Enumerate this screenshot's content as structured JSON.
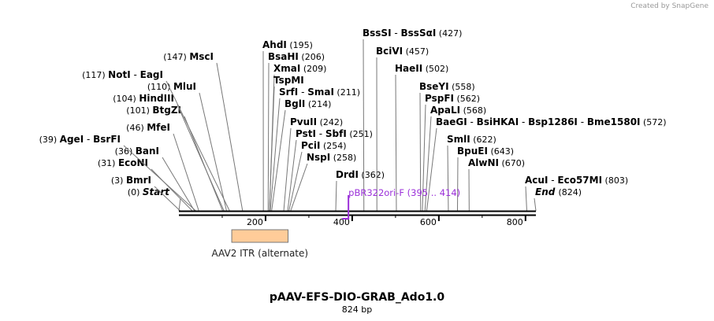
{
  "map": {
    "title": "pAAV-EFS-DIO-GRAB_Ado1.0",
    "length": 824,
    "length_label": "824 bp",
    "credit": "Created by SnapGene",
    "ruler_ticks": [
      200,
      400,
      600,
      800
    ],
    "ends": [
      {
        "name": "Start",
        "pos_label": "(0)",
        "pos": 0,
        "side": "left"
      },
      {
        "name": "End",
        "pos_label": "(824)",
        "pos": 824,
        "side": "right"
      }
    ],
    "sites": [
      {
        "names": [
          "BmrI"
        ],
        "pos_label": "(3)",
        "pos": 3,
        "side": "left"
      },
      {
        "names": [
          "EcoNI"
        ],
        "pos_label": "(31)",
        "pos": 31,
        "side": "left"
      },
      {
        "names": [
          "BanI"
        ],
        "pos_label": "(36)",
        "pos": 36,
        "side": "left"
      },
      {
        "names": [
          "AgeI",
          "BsrFI"
        ],
        "pos_label": "(39)",
        "pos": 39,
        "side": "left"
      },
      {
        "names": [
          "MfeI"
        ],
        "pos_label": "(46)",
        "pos": 46,
        "side": "left"
      },
      {
        "names": [
          "BtgZI"
        ],
        "pos_label": "(101)",
        "pos": 101,
        "side": "left"
      },
      {
        "names": [
          "HindIII"
        ],
        "pos_label": "(104)",
        "pos": 104,
        "side": "left"
      },
      {
        "names": [
          "MluI"
        ],
        "pos_label": "(110)",
        "pos": 110,
        "side": "left"
      },
      {
        "names": [
          "NotI",
          "EagI"
        ],
        "pos_label": "(117)",
        "pos": 117,
        "side": "left"
      },
      {
        "names": [
          "MscI"
        ],
        "pos_label": "(147)",
        "pos": 147,
        "side": "left"
      },
      {
        "names": [
          "AhdI"
        ],
        "pos_label": "(195)",
        "pos": 195,
        "side": "right"
      },
      {
        "names": [
          "BsaHI"
        ],
        "pos_label": "(206)",
        "pos": 206,
        "side": "right"
      },
      {
        "names": [
          "XmaI"
        ],
        "pos_label": "(209)",
        "pos": 209,
        "side": "right"
      },
      {
        "names": [
          "TspMI"
        ],
        "pos_label": "",
        "pos": 209,
        "side": "right"
      },
      {
        "names": [
          "SrfI",
          "SmaI"
        ],
        "pos_label": "(211)",
        "pos": 211,
        "side": "right"
      },
      {
        "names": [
          "BglI"
        ],
        "pos_label": "(214)",
        "pos": 214,
        "side": "right"
      },
      {
        "names": [
          "PvuII"
        ],
        "pos_label": "(242)",
        "pos": 242,
        "side": "right"
      },
      {
        "names": [
          "PstI",
          "SbfI"
        ],
        "pos_label": "(251)",
        "pos": 251,
        "side": "right"
      },
      {
        "names": [
          "PciI"
        ],
        "pos_label": "(254)",
        "pos": 254,
        "side": "right"
      },
      {
        "names": [
          "NspI"
        ],
        "pos_label": "(258)",
        "pos": 258,
        "side": "right"
      },
      {
        "names": [
          "DrdI"
        ],
        "pos_label": "(362)",
        "pos": 362,
        "side": "right"
      },
      {
        "names": [
          "BssSI",
          "BssSαI"
        ],
        "pos_label": "(427)",
        "pos": 427,
        "side": "right"
      },
      {
        "names": [
          "BciVI"
        ],
        "pos_label": "(457)",
        "pos": 457,
        "side": "right"
      },
      {
        "names": [
          "HaeII"
        ],
        "pos_label": "(502)",
        "pos": 502,
        "side": "right"
      },
      {
        "names": [
          "BseYI"
        ],
        "pos_label": "(558)",
        "pos": 558,
        "side": "right"
      },
      {
        "names": [
          "PspFI"
        ],
        "pos_label": "(562)",
        "pos": 562,
        "side": "right"
      },
      {
        "names": [
          "ApaLI"
        ],
        "pos_label": "(568)",
        "pos": 568,
        "side": "right"
      },
      {
        "names": [
          "BaeGI",
          "BsiHKAI",
          "Bsp1286I",
          "Bme1580I"
        ],
        "pos_label": "(572)",
        "pos": 572,
        "side": "right"
      },
      {
        "names": [
          "SmlI"
        ],
        "pos_label": "(622)",
        "pos": 622,
        "side": "right"
      },
      {
        "names": [
          "BpuEI"
        ],
        "pos_label": "(643)",
        "pos": 643,
        "side": "right"
      },
      {
        "names": [
          "AlwNI"
        ],
        "pos_label": "(670)",
        "pos": 670,
        "side": "right"
      },
      {
        "names": [
          "AcuI",
          "Eco57MI"
        ],
        "pos_label": "(803)",
        "pos": 803,
        "side": "right"
      }
    ],
    "features": [
      {
        "name": "AAV2 ITR (alternate)",
        "start": 122,
        "end": 252,
        "color": "#ffcc99",
        "border": "#777777"
      }
    ],
    "primers": [
      {
        "name": "pBR322ori-F",
        "range_label": "(395 .. 414)",
        "start": 395,
        "end": 414,
        "color": "#9b30d9"
      }
    ]
  }
}
